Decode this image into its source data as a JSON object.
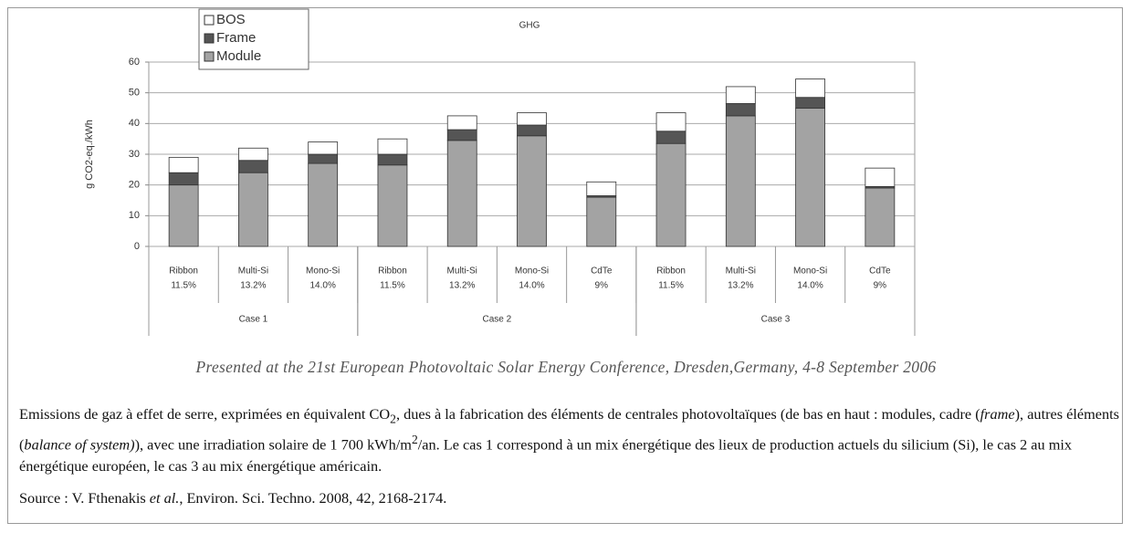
{
  "chart_data": {
    "type": "stacked_bar",
    "title": "GHG",
    "y_label": "g CO2-eq./kWh",
    "categories": [
      "Ribbon",
      "Multi-Si",
      "Mono-Si",
      "Ribbon",
      "Multi-Si",
      "Mono-Si",
      "CdTe",
      "Ribbon",
      "Multi-Si",
      "Mono-Si",
      "CdTe"
    ],
    "category_sublabels": [
      "11.5%",
      "13.2%",
      "14.0%",
      "11.5%",
      "13.2%",
      "14.0%",
      "9%",
      "11.5%",
      "13.2%",
      "14.0%",
      "9%"
    ],
    "groups": [
      {
        "label": "Case 1",
        "count": 3
      },
      {
        "label": "Case 2",
        "count": 4
      },
      {
        "label": "Case 3",
        "count": 4
      }
    ],
    "series": [
      {
        "name": "Module",
        "color": "#a3a3a3",
        "values": [
          20,
          24,
          27,
          26.5,
          34.5,
          36,
          16,
          33.5,
          42.5,
          45,
          19
        ]
      },
      {
        "name": "Frame",
        "color": "#555555",
        "values": [
          4,
          4,
          3,
          3.5,
          3.5,
          3.5,
          0.5,
          4,
          4,
          3.5,
          0.5
        ]
      },
      {
        "name": "BOS",
        "color": "#ffffff",
        "values": [
          5,
          4,
          4,
          5,
          4.5,
          4,
          4.5,
          6,
          5.5,
          6,
          6
        ]
      }
    ],
    "ylim": [
      0,
      60
    ],
    "yticks": [
      0,
      10,
      20,
      30,
      40,
      50,
      60
    ],
    "grid": true,
    "legend": "upper-left"
  },
  "credit": "Presented at the 21st European Photovoltaic Solar Energy Conference, Dresden,Germany, 4-8 September 2006",
  "caption": [
    {
      "text": "Emissions de gaz à effet de serre, exprimées en équivalent CO"
    },
    {
      "text": "2",
      "format": "sub"
    },
    {
      "text": ", dues à la fabrication des éléments de centrales photovoltaïques (de bas en haut : modules, cadre ("
    },
    {
      "text": "frame",
      "format": "italic"
    },
    {
      "text": "), autres éléments ("
    },
    {
      "text": "balance of system)",
      "format": "italic"
    },
    {
      "text": "), avec une irradiation solaire de 1 700 kWh/m"
    },
    {
      "text": "2",
      "format": "sup"
    },
    {
      "text": "/an. Le cas 1 correspond à un mix énergétique des lieux de production actuels du silicium (Si), le cas 2 au mix énergétique européen, le cas 3 au mix énergétique américain."
    }
  ],
  "source": [
    {
      "text": "Source : V. Fthenakis "
    },
    {
      "text": "et al.",
      "format": "italic"
    },
    {
      "text": ", Environ. Sci. Techno. 2008, 42, 2168-2174."
    }
  ]
}
